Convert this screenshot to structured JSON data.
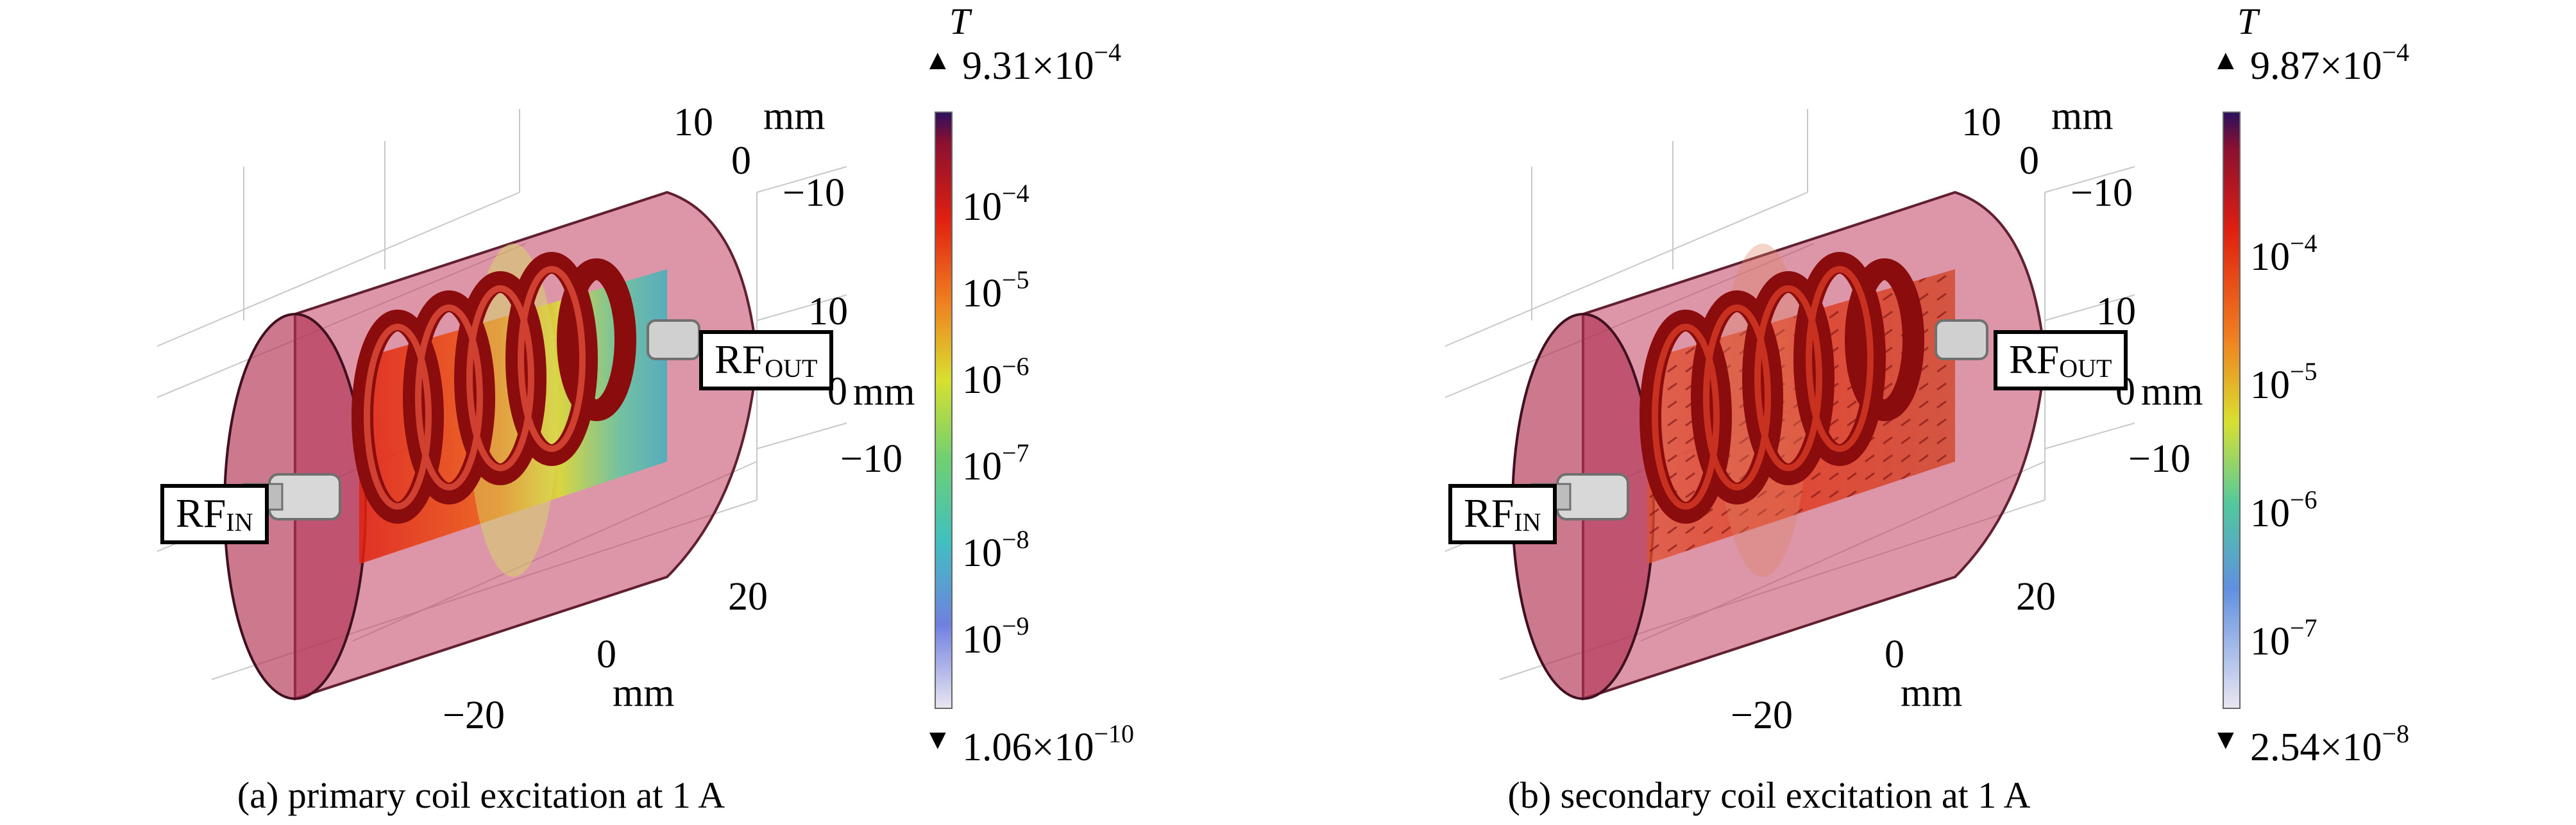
{
  "panels": [
    {
      "id": "a",
      "caption": "(a) primary coil excitation at 1 A",
      "colorbar": {
        "unit": "T",
        "max_label": "9.31×10",
        "max_exp": "−4",
        "min_label": "1.06×10",
        "min_exp": "−10",
        "ticks": [
          {
            "base": "10",
            "exp": "−4"
          },
          {
            "base": "10",
            "exp": "−5"
          },
          {
            "base": "10",
            "exp": "−6"
          },
          {
            "base": "10",
            "exp": "−7"
          },
          {
            "base": "10",
            "exp": "−8"
          },
          {
            "base": "10",
            "exp": "−9"
          }
        ]
      },
      "axes": {
        "top_ticks": [
          "10",
          "0",
          "−10"
        ],
        "top_unit": "mm",
        "right_ticks": [
          "10",
          "0",
          "−10"
        ],
        "right_unit": "mm",
        "bottom_ticks": [
          "20",
          "0",
          "−20"
        ],
        "bottom_unit": "mm"
      },
      "labels": {
        "rf_in_base": "RF",
        "rf_in_sub": "IN",
        "rf_out_base": "RF",
        "rf_out_sub": "OUT"
      }
    },
    {
      "id": "b",
      "caption": "(b) secondary coil excitation at 1 A",
      "colorbar": {
        "unit": "T",
        "max_label": "9.87×10",
        "max_exp": "−4",
        "min_label": "2.54×10",
        "min_exp": "−8",
        "ticks": [
          {
            "base": "10",
            "exp": "−4"
          },
          {
            "base": "10",
            "exp": "−5"
          },
          {
            "base": "10",
            "exp": "−6"
          },
          {
            "base": "10",
            "exp": "−7"
          }
        ]
      },
      "axes": {
        "top_ticks": [
          "10",
          "0",
          "−10"
        ],
        "top_unit": "mm",
        "right_ticks": [
          "10",
          "0",
          "−10"
        ],
        "right_unit": "mm",
        "bottom_ticks": [
          "20",
          "0",
          "−20"
        ],
        "bottom_unit": "mm"
      },
      "labels": {
        "rf_in_base": "RF",
        "rf_in_sub": "IN",
        "rf_out_base": "RF",
        "rf_out_sub": "OUT"
      }
    }
  ],
  "colors": {
    "cavity": "#b03050",
    "coil": "#a01010",
    "field_hot": "#e03010",
    "field_mid": "#d8e030",
    "field_cool": "#40c0c0"
  }
}
